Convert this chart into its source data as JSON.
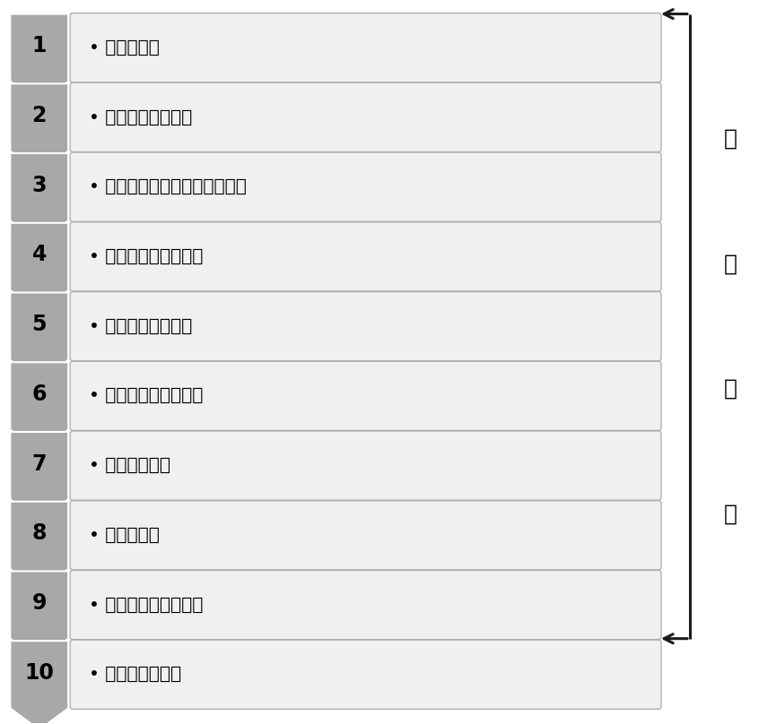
{
  "steps": [
    {
      "num": "1",
      "text": "• 镍废水收集"
    },
    {
      "num": "2",
      "text": "• 镍树脂吸附至饱和"
    },
    {
      "num": "3",
      "text": "• 解吸附获得高纯度硫酸镍溶液"
    },
    {
      "num": "4",
      "text": "• 溶液加热、脉冲电解"
    },
    {
      "num": "5",
      "text": "• 多级循环精密过滤"
    },
    {
      "num": "6",
      "text": "• 净化液转移至蜁发器"
    },
    {
      "num": "7",
      "text": "• 减压蜁发浓缩"
    },
    {
      "num": "8",
      "text": "• 浓缩液冷却"
    },
    {
      "num": "9",
      "text": "• 固液分离、母液回收"
    },
    {
      "num": "10",
      "text": "• 晶体收集、回用"
    }
  ],
  "arrow_color": "#1a1a1a",
  "chevron_color": "#a8a8a8",
  "chevron_edge_color": "#888888",
  "box_color": "#f0f0f0",
  "box_border_color": "#b0b0b0",
  "text_color": "#000000",
  "num_color": "#000000",
  "sidebar_text": [
    "母",
    "液",
    "转",
    "移"
  ],
  "background_color": "#ffffff",
  "fig_width": 8.65,
  "fig_height": 8.08,
  "dpi": 100
}
